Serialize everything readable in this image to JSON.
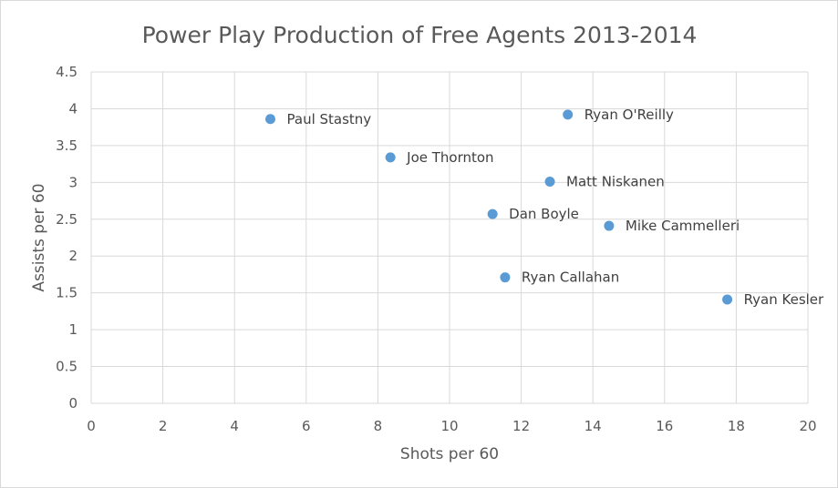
{
  "chart_data": {
    "type": "scatter",
    "title": "Power Play Production of Free Agents 2013-2014",
    "xlabel": "Shots per 60",
    "ylabel": "Assists per 60",
    "xlim": [
      0,
      20
    ],
    "ylim": [
      0,
      4.5
    ],
    "x_ticks": [
      "0",
      "2",
      "4",
      "6",
      "8",
      "10",
      "12",
      "14",
      "16",
      "18",
      "20"
    ],
    "y_ticks": [
      "0",
      "0.5",
      "1",
      "1.5",
      "2",
      "2.5",
      "3",
      "3.5",
      "4",
      "4.5"
    ],
    "grid": true,
    "legend": "none",
    "colors": {
      "marker": "#5b9bd5",
      "grid": "#d9d9d9",
      "text": "#595959"
    },
    "points": [
      {
        "label": "Paul Stastny",
        "x": 5.0,
        "y": 3.86
      },
      {
        "label": "Ryan O'Reilly",
        "x": 13.3,
        "y": 3.92
      },
      {
        "label": "Joe Thornton",
        "x": 8.35,
        "y": 3.34
      },
      {
        "label": "Matt Niskanen",
        "x": 12.8,
        "y": 3.01
      },
      {
        "label": "Dan Boyle",
        "x": 11.2,
        "y": 2.57
      },
      {
        "label": "Mike Cammelleri",
        "x": 14.45,
        "y": 2.41
      },
      {
        "label": "Ryan Callahan",
        "x": 11.55,
        "y": 1.71
      },
      {
        "label": "Ryan Kesler",
        "x": 17.75,
        "y": 1.41
      }
    ]
  }
}
